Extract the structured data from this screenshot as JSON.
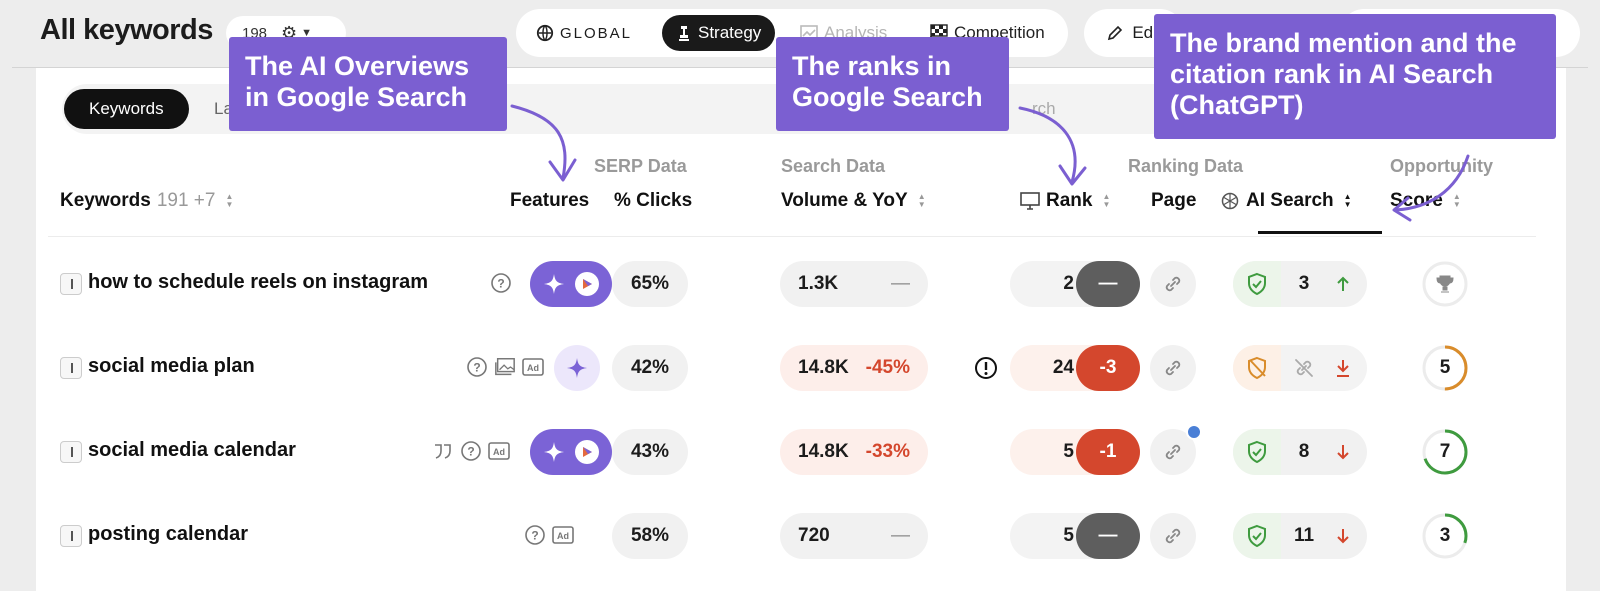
{
  "header": {
    "title": "All keywords",
    "count": "198",
    "modes": [
      {
        "label": "GLOBAL",
        "icon": "globe-icon"
      },
      {
        "label": "Strategy",
        "icon": "chess-icon",
        "active": true
      },
      {
        "label": "Analysis",
        "icon": "chart-icon"
      },
      {
        "label": "Competition",
        "icon": "flag-icon"
      }
    ],
    "edit_label": "Edit"
  },
  "tabs": {
    "keywords": "Keywords",
    "second": "La",
    "search_partial": "rch"
  },
  "table": {
    "groups": {
      "serp": "SERP Data",
      "search": "Search Data",
      "ranking": "Ranking Data",
      "opportunity": "Opportunity"
    },
    "columns": {
      "keywords": "Keywords",
      "keywords_count": "191 +7",
      "features": "Features",
      "clicks": "% Clicks",
      "volume": "Volume & YoY",
      "rank": "Rank",
      "page": "Page",
      "ai_search": "AI Search",
      "score": "Score"
    },
    "rows": [
      {
        "keyword": "how to schedule reels on instagram",
        "clicks": "65%",
        "volume": "1.3K",
        "yoy": "—",
        "rank": "2",
        "rank_change": "—",
        "ai_rank": "3",
        "ai_trend": "up",
        "score": "",
        "score_fraction": 0
      },
      {
        "keyword": "social media plan",
        "clicks": "42%",
        "volume": "14.8K",
        "yoy": "-45%",
        "rank": "24",
        "rank_change": "-3",
        "ai_rank": "",
        "ai_trend": "down",
        "score": "5",
        "score_fraction": 0.5
      },
      {
        "keyword": "social media calendar",
        "clicks": "43%",
        "volume": "14.8K",
        "yoy": "-33%",
        "rank": "5",
        "rank_change": "-1",
        "ai_rank": "8",
        "ai_trend": "down",
        "score": "7",
        "score_fraction": 0.7
      },
      {
        "keyword": "posting calendar",
        "clicks": "58%",
        "volume": "720",
        "yoy": "—",
        "rank": "5",
        "rank_change": "—",
        "ai_rank": "11",
        "ai_trend": "down",
        "score": "3",
        "score_fraction": 0.3
      }
    ]
  },
  "callouts": {
    "ai_overviews": "The AI Overviews in Google Search",
    "ranks": "The ranks in Google Search",
    "brand": "The brand mention and the citation rank in AI Search (ChatGPT)"
  },
  "colors": {
    "accent": "#7b5fd1",
    "negative": "#d4472d",
    "positive": "#3f9b3f",
    "warning": "#d98c2b"
  }
}
